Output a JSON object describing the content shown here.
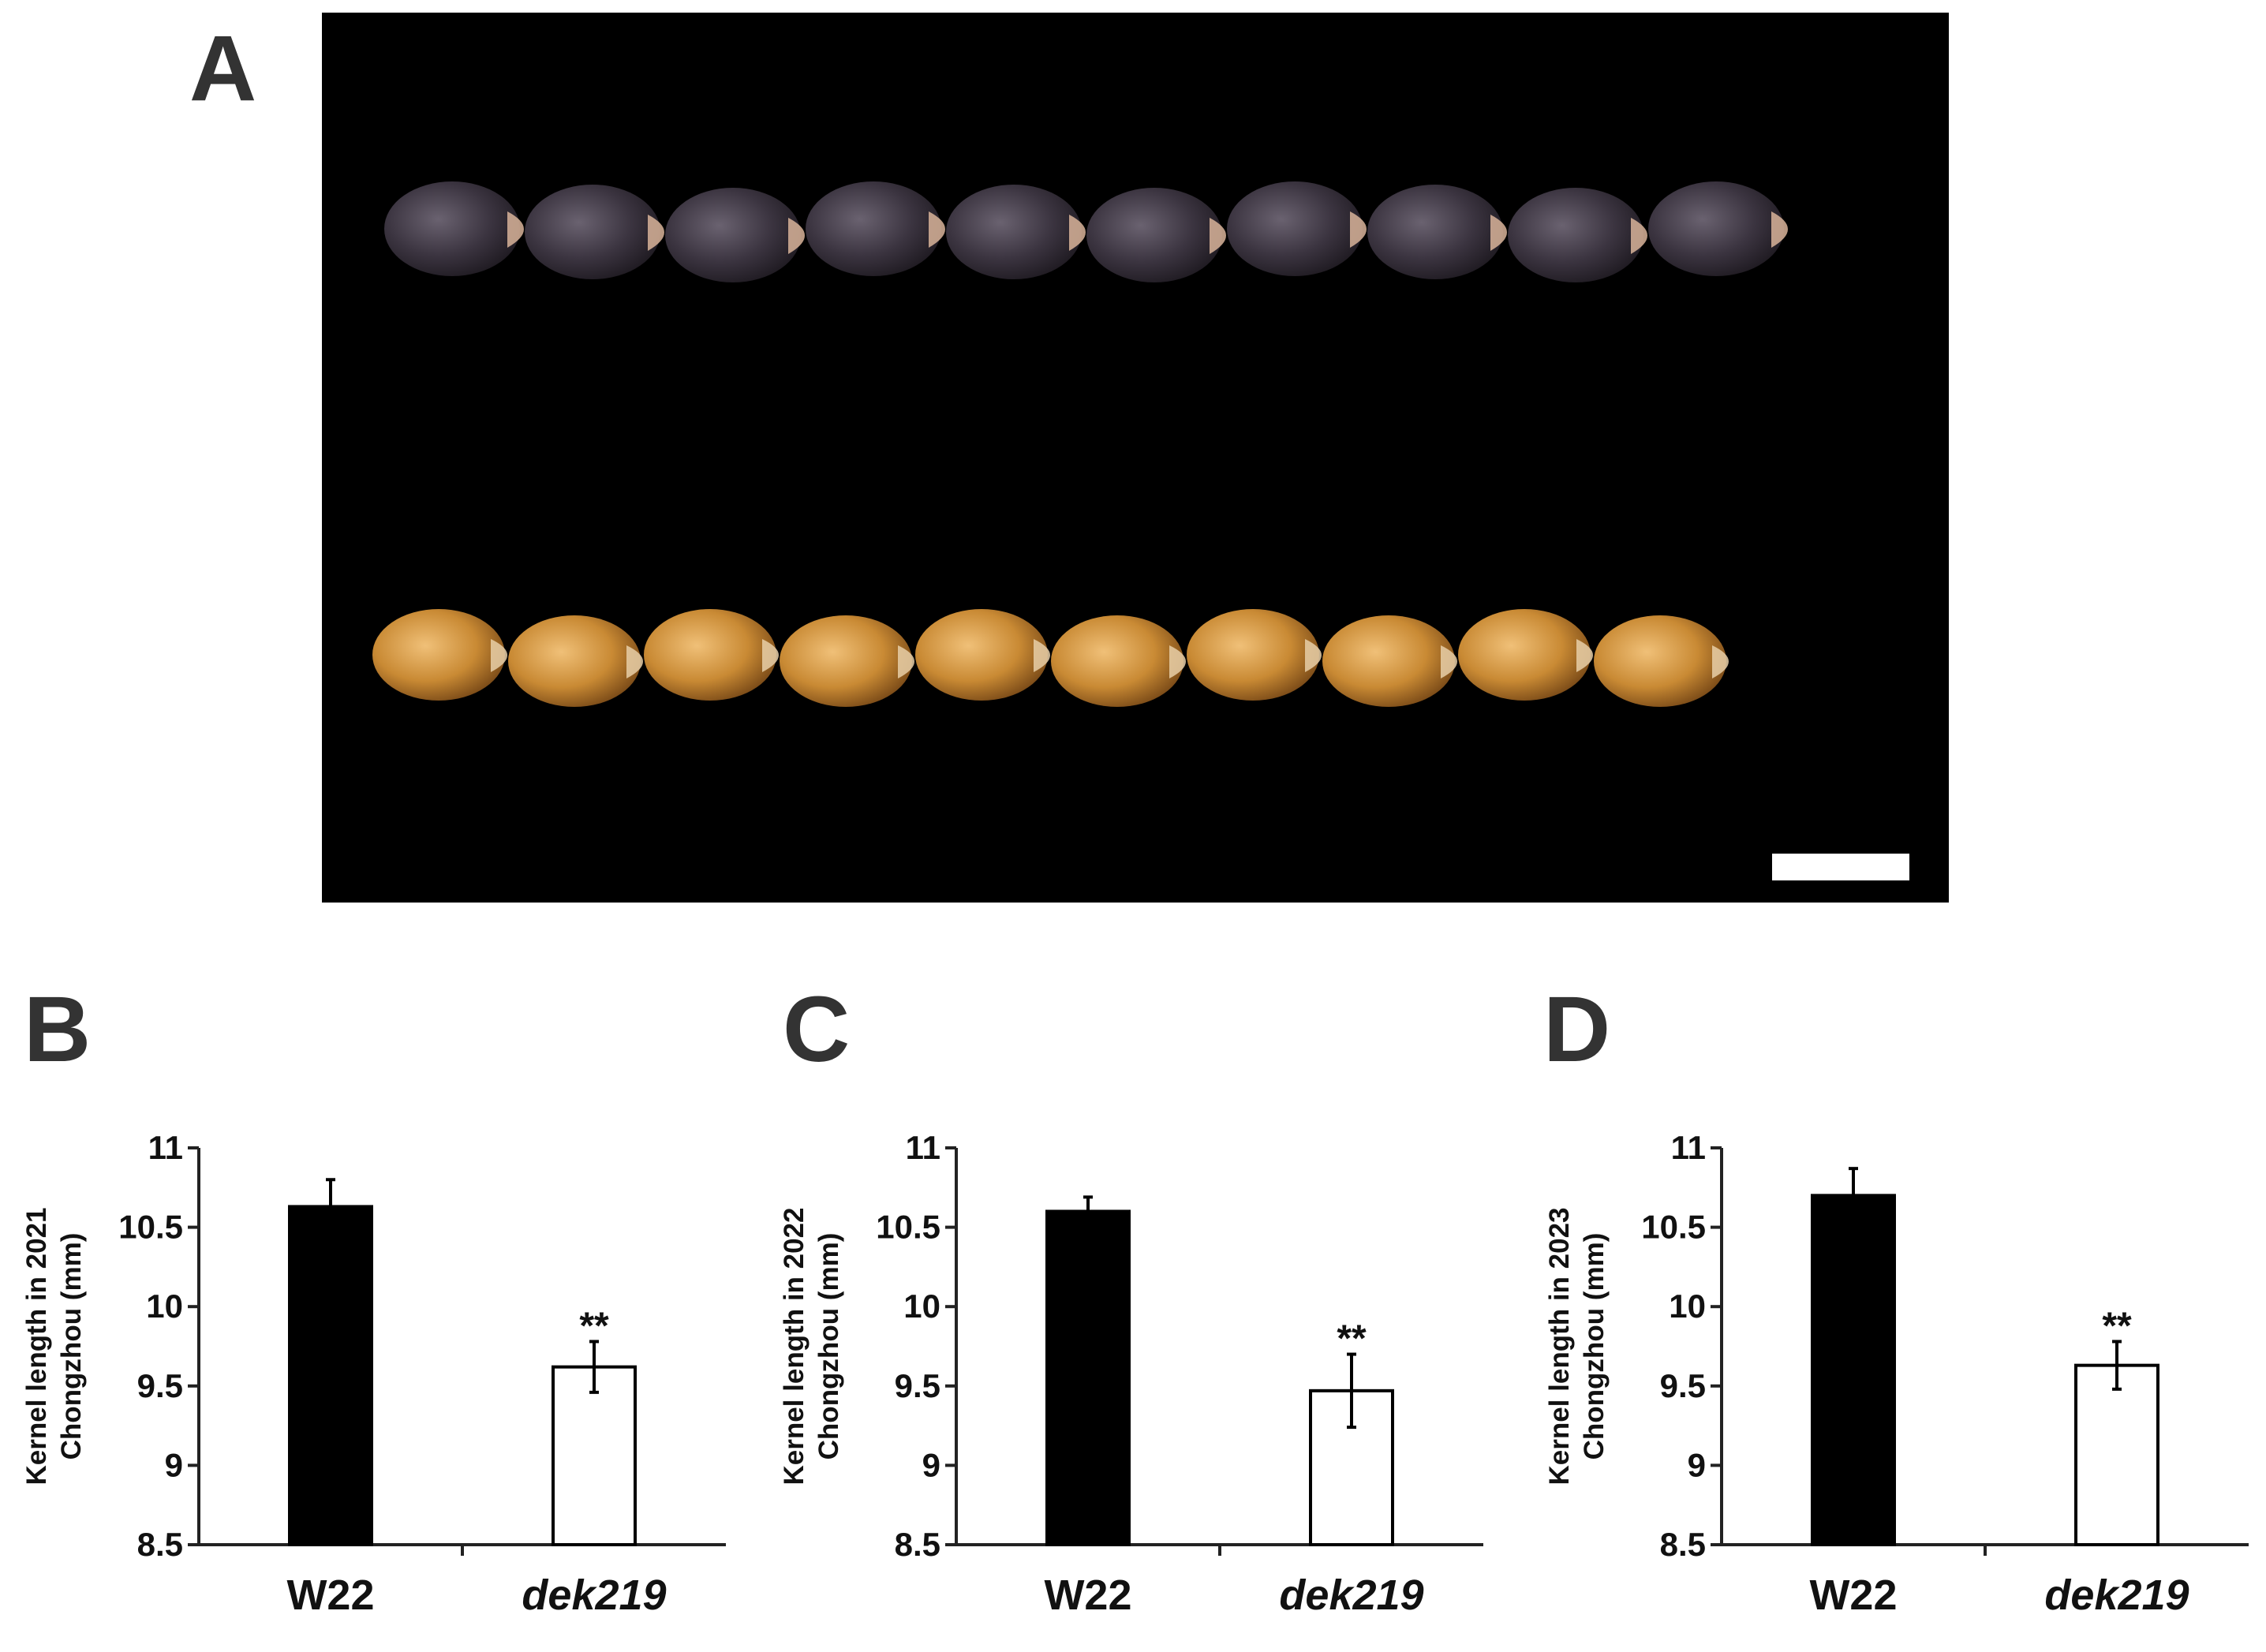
{
  "panels": {
    "a": "A",
    "b": "B",
    "c": "C",
    "d": "D"
  },
  "photo": {
    "description_row_top": "purple kernels",
    "description_row_bottom": "yellow kernels",
    "kernel_count_per_row": 10
  },
  "colors": {
    "bar_filled": "#000000",
    "bar_open": "#ffffff",
    "axis": "#222222",
    "text": "#111111",
    "purple_kernel": "#3b3440",
    "yellow_kernel": "#c98a34",
    "scale_bar": "#ffffff"
  },
  "chart_data": [
    {
      "type": "bar",
      "panel": "B",
      "categories": [
        "W22",
        "dek219"
      ],
      "values": [
        10.63,
        9.62
      ],
      "errors": [
        0.17,
        0.16
      ],
      "significance": [
        "",
        "**"
      ],
      "ylabel_line1": "Kernel length in 2021",
      "ylabel_line2": "Chongzhou (mm)",
      "ylim": [
        8.5,
        11
      ],
      "yticks": [
        "8.5",
        "9",
        "9.5",
        "10",
        "10.5",
        "11"
      ]
    },
    {
      "type": "bar",
      "panel": "C",
      "categories": [
        "W22",
        "dek219"
      ],
      "values": [
        10.6,
        9.47
      ],
      "errors": [
        0.09,
        0.23
      ],
      "significance": [
        "",
        "**"
      ],
      "ylabel_line1": "Kernel length in 2022",
      "ylabel_line2": "Chongzhou (mm)",
      "ylim": [
        8.5,
        11
      ],
      "yticks": [
        "8.5",
        "9",
        "9.5",
        "10",
        "10.5",
        "11"
      ]
    },
    {
      "type": "bar",
      "panel": "D",
      "categories": [
        "W22",
        "dek219"
      ],
      "values": [
        10.7,
        9.63
      ],
      "errors": [
        0.17,
        0.15
      ],
      "significance": [
        "",
        "**"
      ],
      "ylabel_line1": "Kernel length in 2023",
      "ylabel_line2": "Chongzhou (mm)",
      "ylim": [
        8.5,
        11
      ],
      "yticks": [
        "8.5",
        "9",
        "9.5",
        "10",
        "10.5",
        "11"
      ]
    }
  ]
}
